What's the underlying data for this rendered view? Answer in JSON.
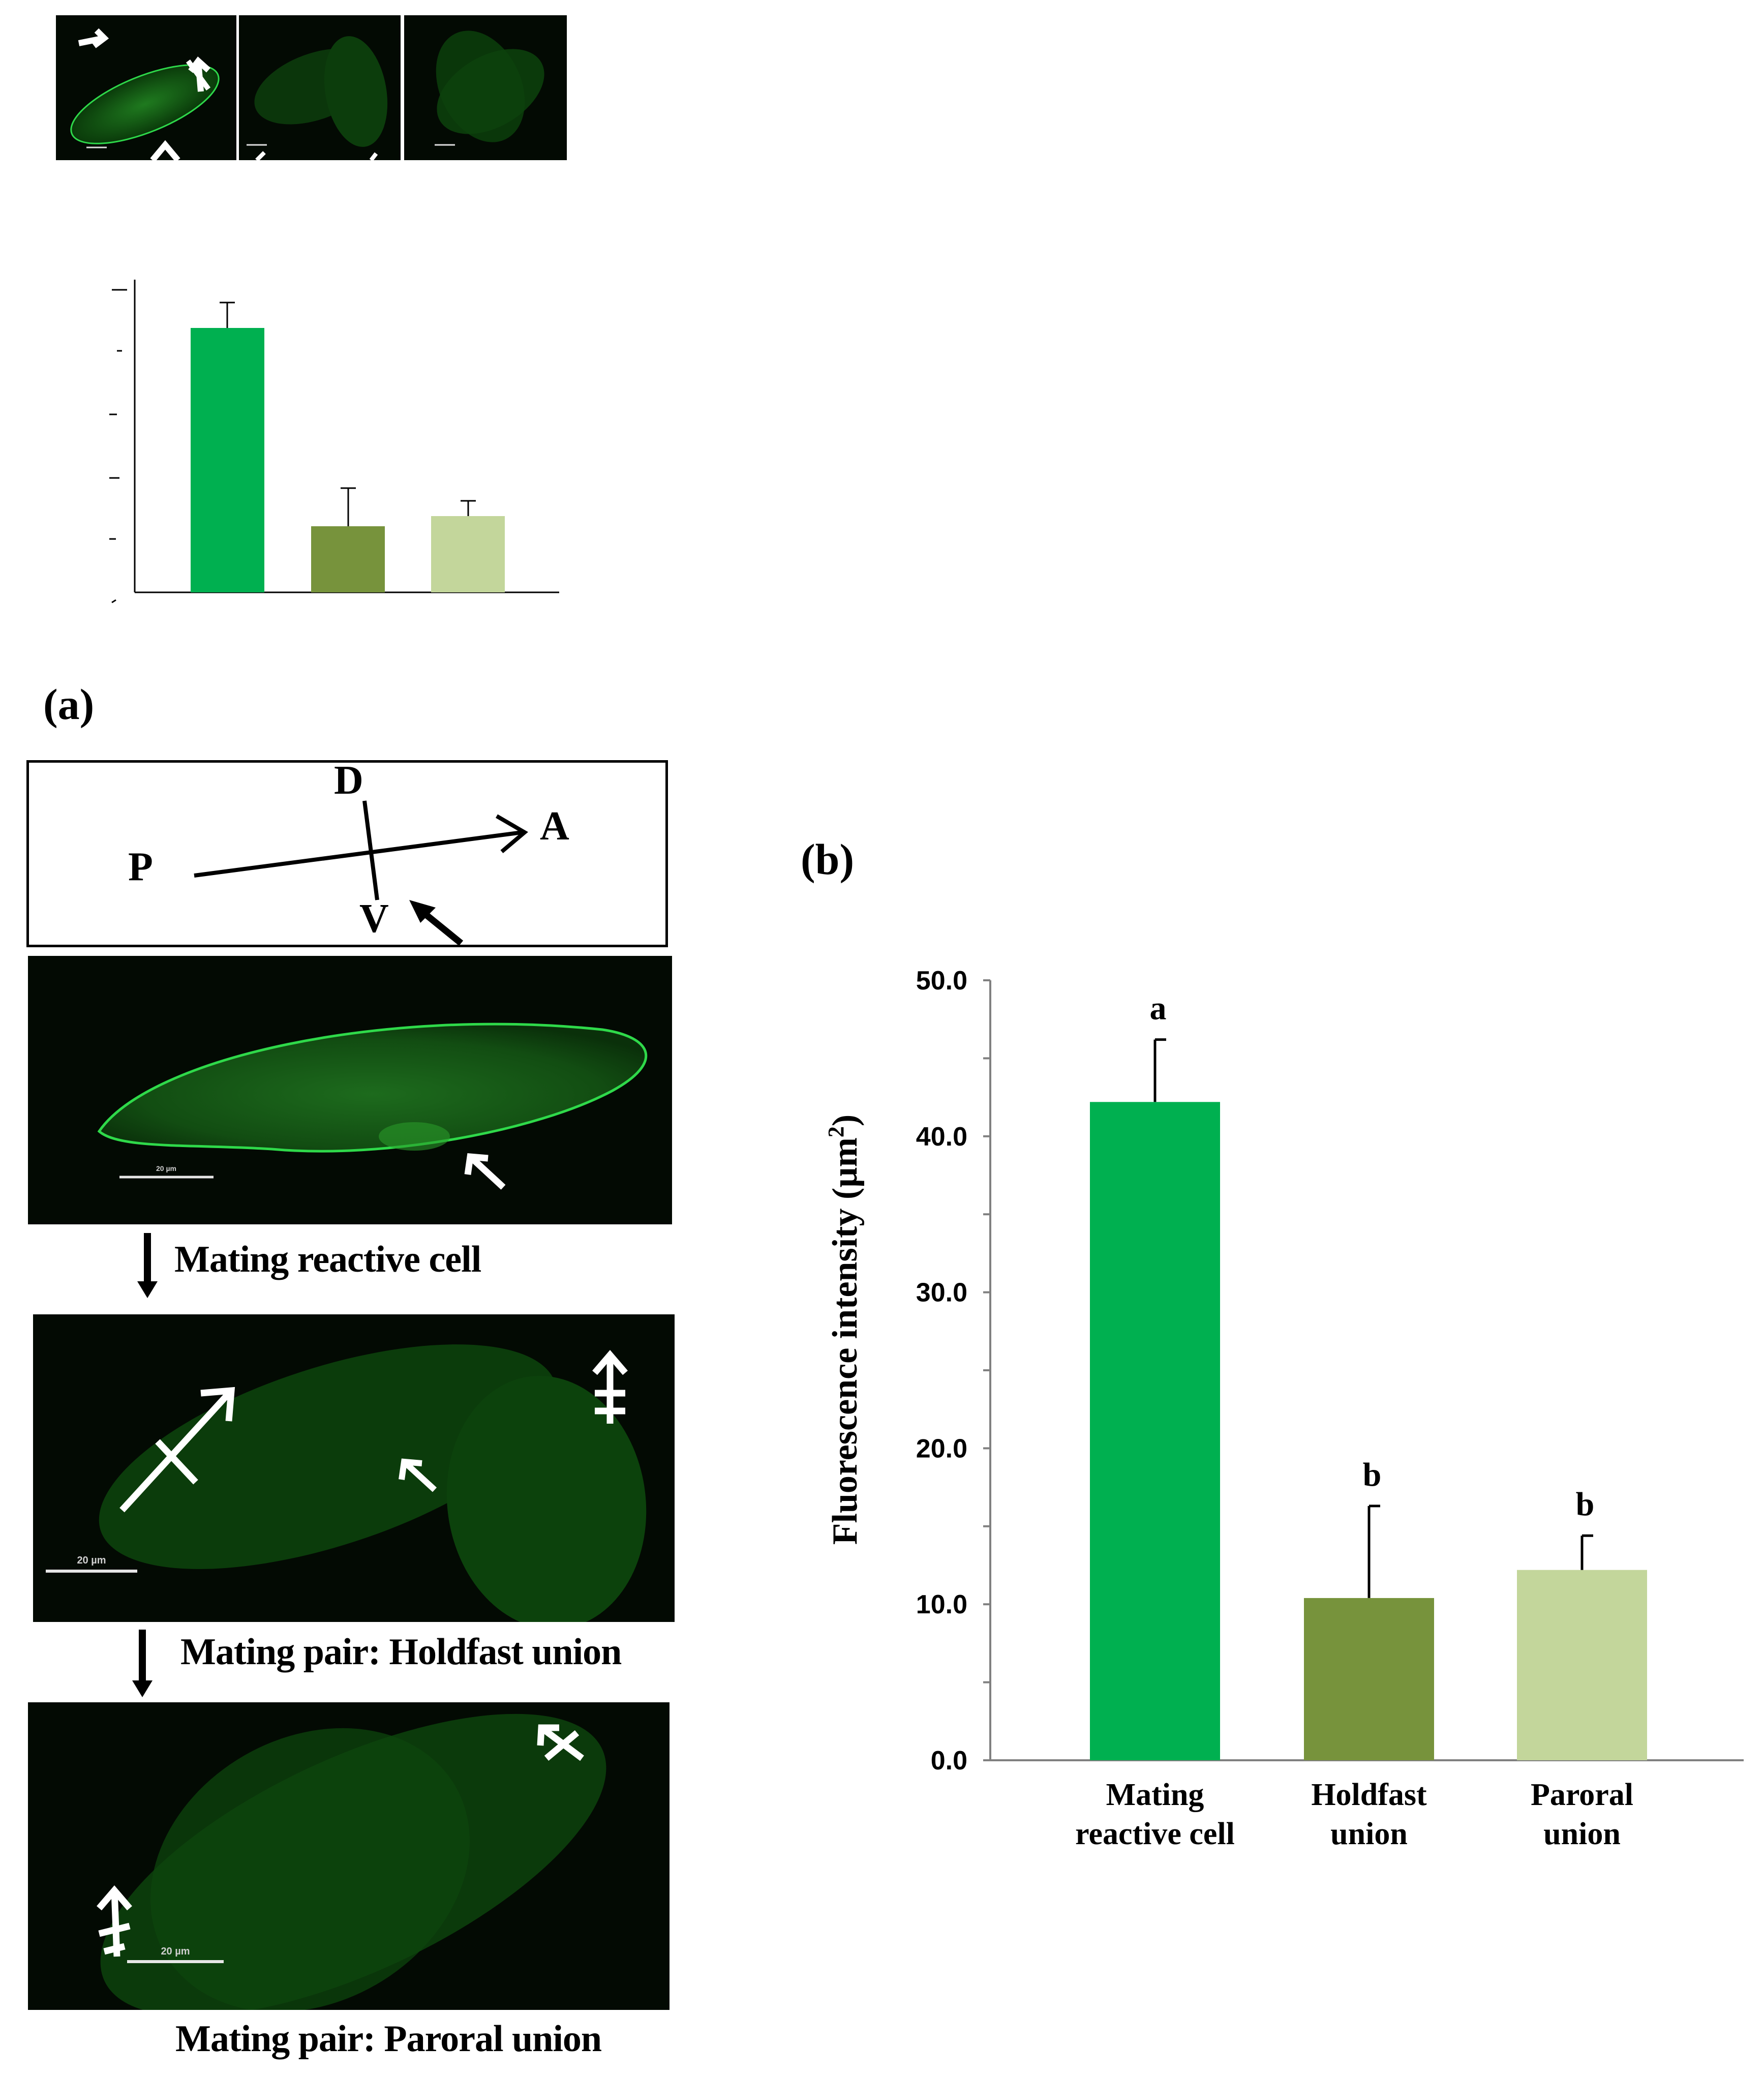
{
  "panel_a_label": "(a)",
  "panel_b_label": "(b)",
  "orientation": {
    "dorsal": "D",
    "ventral": "V",
    "anterior": "A",
    "posterior": "P"
  },
  "captions": {
    "reactive": "Mating reactive cell",
    "holdfast": "Mating pair: Holdfast union",
    "paroral": "Mating pair: Paroral union"
  },
  "scale_bar_text": "20 µm",
  "colors": {
    "bar_reactive": "#00b050",
    "bar_holdfast": "#77933c",
    "bar_paroral": "#c3d69b",
    "fluorescence": "#1fd23a"
  },
  "chart_data": {
    "type": "bar",
    "ylabel_main": "Fluorescence intensity (µm",
    "ylabel_sup": "2",
    "ylabel_end": ")",
    "ylim": [
      0,
      50
    ],
    "yticks": [
      "0.0",
      "10.0",
      "20.0",
      "30.0",
      "40.0",
      "50.0"
    ],
    "grid": false,
    "categories": [
      {
        "line1": "Mating",
        "line2": "reactive cell"
      },
      {
        "line1": "Holdfast",
        "line2": "union"
      },
      {
        "line1": "Paroral",
        "line2": "union"
      }
    ],
    "values": [
      42.2,
      10.4,
      12.2
    ],
    "errors": [
      4.0,
      5.9,
      2.2
    ],
    "significance": [
      "a",
      "b",
      "b"
    ]
  }
}
